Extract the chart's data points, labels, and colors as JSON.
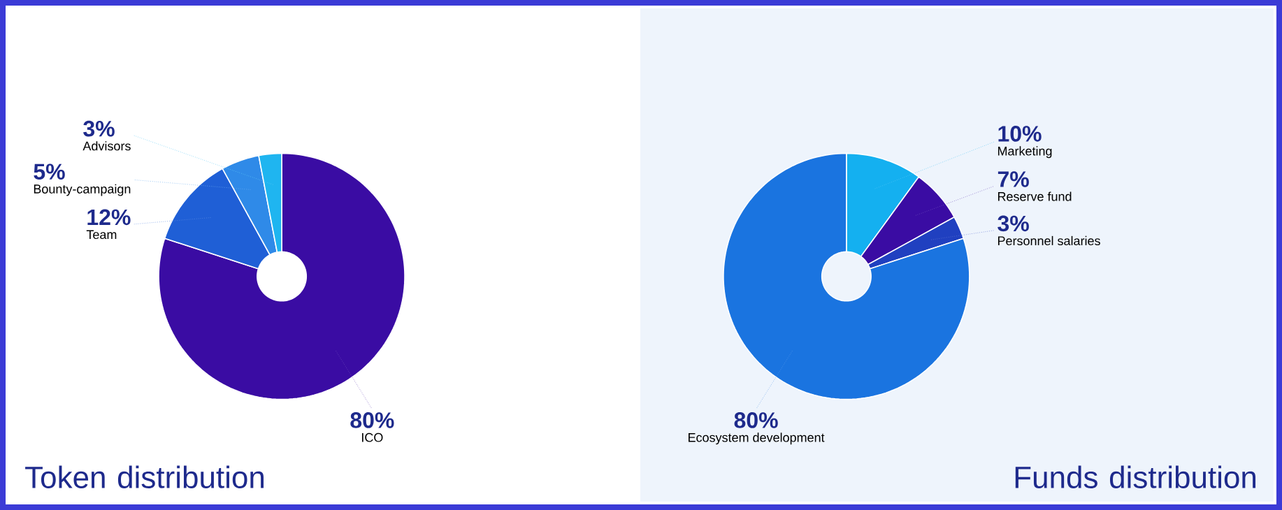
{
  "chart_data": [
    {
      "type": "donut",
      "title": "Token distribution",
      "categories": [
        "ICO",
        "Team",
        "Bounty-campaign",
        "Advisors"
      ],
      "values": [
        80,
        12,
        5,
        3
      ],
      "value_labels": [
        "80%",
        "12%",
        "5%",
        "3%"
      ],
      "colors": [
        "#3a0ca3",
        "#1f5fd6",
        "#2f8ae8",
        "#1fb5f0"
      ]
    },
    {
      "type": "donut",
      "title": "Funds distribution",
      "categories": [
        "Marketing",
        "Reserve fund",
        "Personnel salaries",
        "Ecosystem development"
      ],
      "values": [
        10,
        7,
        3,
        80
      ],
      "value_labels": [
        "10%",
        "7%",
        "3%",
        "80%"
      ],
      "colors": [
        "#14b0f0",
        "#3a0ca3",
        "#2040c0",
        "#1a74e0"
      ]
    }
  ]
}
